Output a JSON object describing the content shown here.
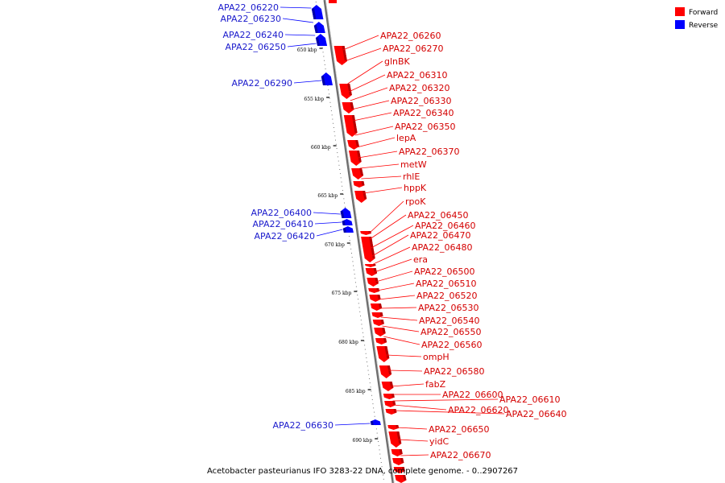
{
  "legend": {
    "forward_label": "Forward",
    "reverse_label": "Reverse",
    "forward_color": "#ff0000",
    "reverse_color": "#0000ff"
  },
  "caption": "Acetobacter pasteurianus IFO 3283-22 DNA, complete genome. - 0..2907267",
  "scale_labels": [
    "650 kbp",
    "655 kbp",
    "660 kbp",
    "665 kbp",
    "670 kbp",
    "675 kbp",
    "680 kbp",
    "685 kbp",
    "690 kbp"
  ],
  "forward_genes": [
    "APA22_06260",
    "APA22_06270",
    "glnBK",
    "APA22_06310",
    "APA22_06320",
    "APA22_06330",
    "APA22_06340",
    "APA22_06350",
    "lepA",
    "APA22_06370",
    "metW",
    "rhlE",
    "hppK",
    "rpoK",
    "APA22_06450",
    "APA22_06460",
    "APA22_06470",
    "APA22_06480",
    "era",
    "APA22_06500",
    "APA22_06510",
    "APA22_06520",
    "APA22_06530",
    "APA22_06540",
    "APA22_06550",
    "APA22_06560",
    "ompH",
    "APA22_06580",
    "fabZ",
    "APA22_06600",
    "APA22_06610",
    "APA22_06620",
    "APA22_06640",
    "APA22_06650",
    "yidC",
    "APA22_06670"
  ],
  "reverse_genes": [
    "APA22_06220",
    "APA22_06230",
    "APA22_06240",
    "APA22_06250",
    "APA22_06290",
    "APA22_06400",
    "APA22_06410",
    "APA22_06420",
    "APA22_06630"
  ]
}
